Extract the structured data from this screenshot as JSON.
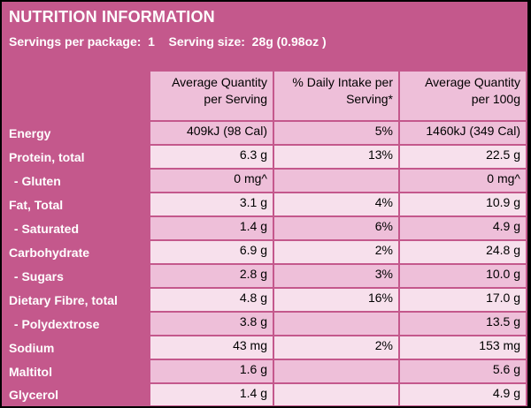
{
  "title": "NUTRITION INFORMATION",
  "servings_line": "Servings per package:  1    Serving size:  28g (0.98oz )",
  "columns": [
    {
      "line1": "Average Quantity",
      "line2": "per Serving"
    },
    {
      "line1": "% Daily Intake per",
      "line2": "Serving*"
    },
    {
      "line1": "Average Quantity",
      "line2": "per 100g"
    }
  ],
  "rows": [
    {
      "label": "Energy",
      "per_serving": "409kJ (98 Cal)",
      "daily_intake": "5%",
      "per_100g": "1460kJ (349 Cal)",
      "sub": false
    },
    {
      "label": "Protein, total",
      "per_serving": "6.3 g",
      "daily_intake": "13%",
      "per_100g": "22.5 g",
      "sub": false
    },
    {
      "label": " - Gluten",
      "per_serving": "0 mg^",
      "daily_intake": "",
      "per_100g": "0 mg^",
      "sub": true
    },
    {
      "label": "Fat, Total",
      "per_serving": "3.1 g",
      "daily_intake": "4%",
      "per_100g": "10.9 g",
      "sub": false
    },
    {
      "label": " - Saturated",
      "per_serving": "1.4 g",
      "daily_intake": "6%",
      "per_100g": "4.9 g",
      "sub": true
    },
    {
      "label": "Carbohydrate",
      "per_serving": "6.9 g",
      "daily_intake": "2%",
      "per_100g": "24.8 g",
      "sub": false
    },
    {
      "label": " - Sugars",
      "per_serving": "2.8 g",
      "daily_intake": "3%",
      "per_100g": "10.0 g",
      "sub": true
    },
    {
      "label": "Dietary Fibre, total",
      "per_serving": "4.8 g",
      "daily_intake": "16%",
      "per_100g": "17.0 g",
      "sub": false
    },
    {
      "label": " - Polydextrose",
      "per_serving": "3.8 g",
      "daily_intake": "",
      "per_100g": "13.5 g",
      "sub": true
    },
    {
      "label": "Sodium",
      "per_serving": "43 mg",
      "daily_intake": "2%",
      "per_100g": "153 mg",
      "sub": false
    },
    {
      "label": "Maltitol",
      "per_serving": "1.6 g",
      "daily_intake": "",
      "per_100g": "5.6 g",
      "sub": false
    },
    {
      "label": "Glycerol",
      "per_serving": "1.4 g",
      "daily_intake": "",
      "per_100g": "4.9 g",
      "sub": false
    }
  ],
  "colors": {
    "brand_magenta": "#c4588c",
    "row_dark": "#eebfd9",
    "row_light": "#f7e0ec",
    "text_light": "#ffffff"
  }
}
